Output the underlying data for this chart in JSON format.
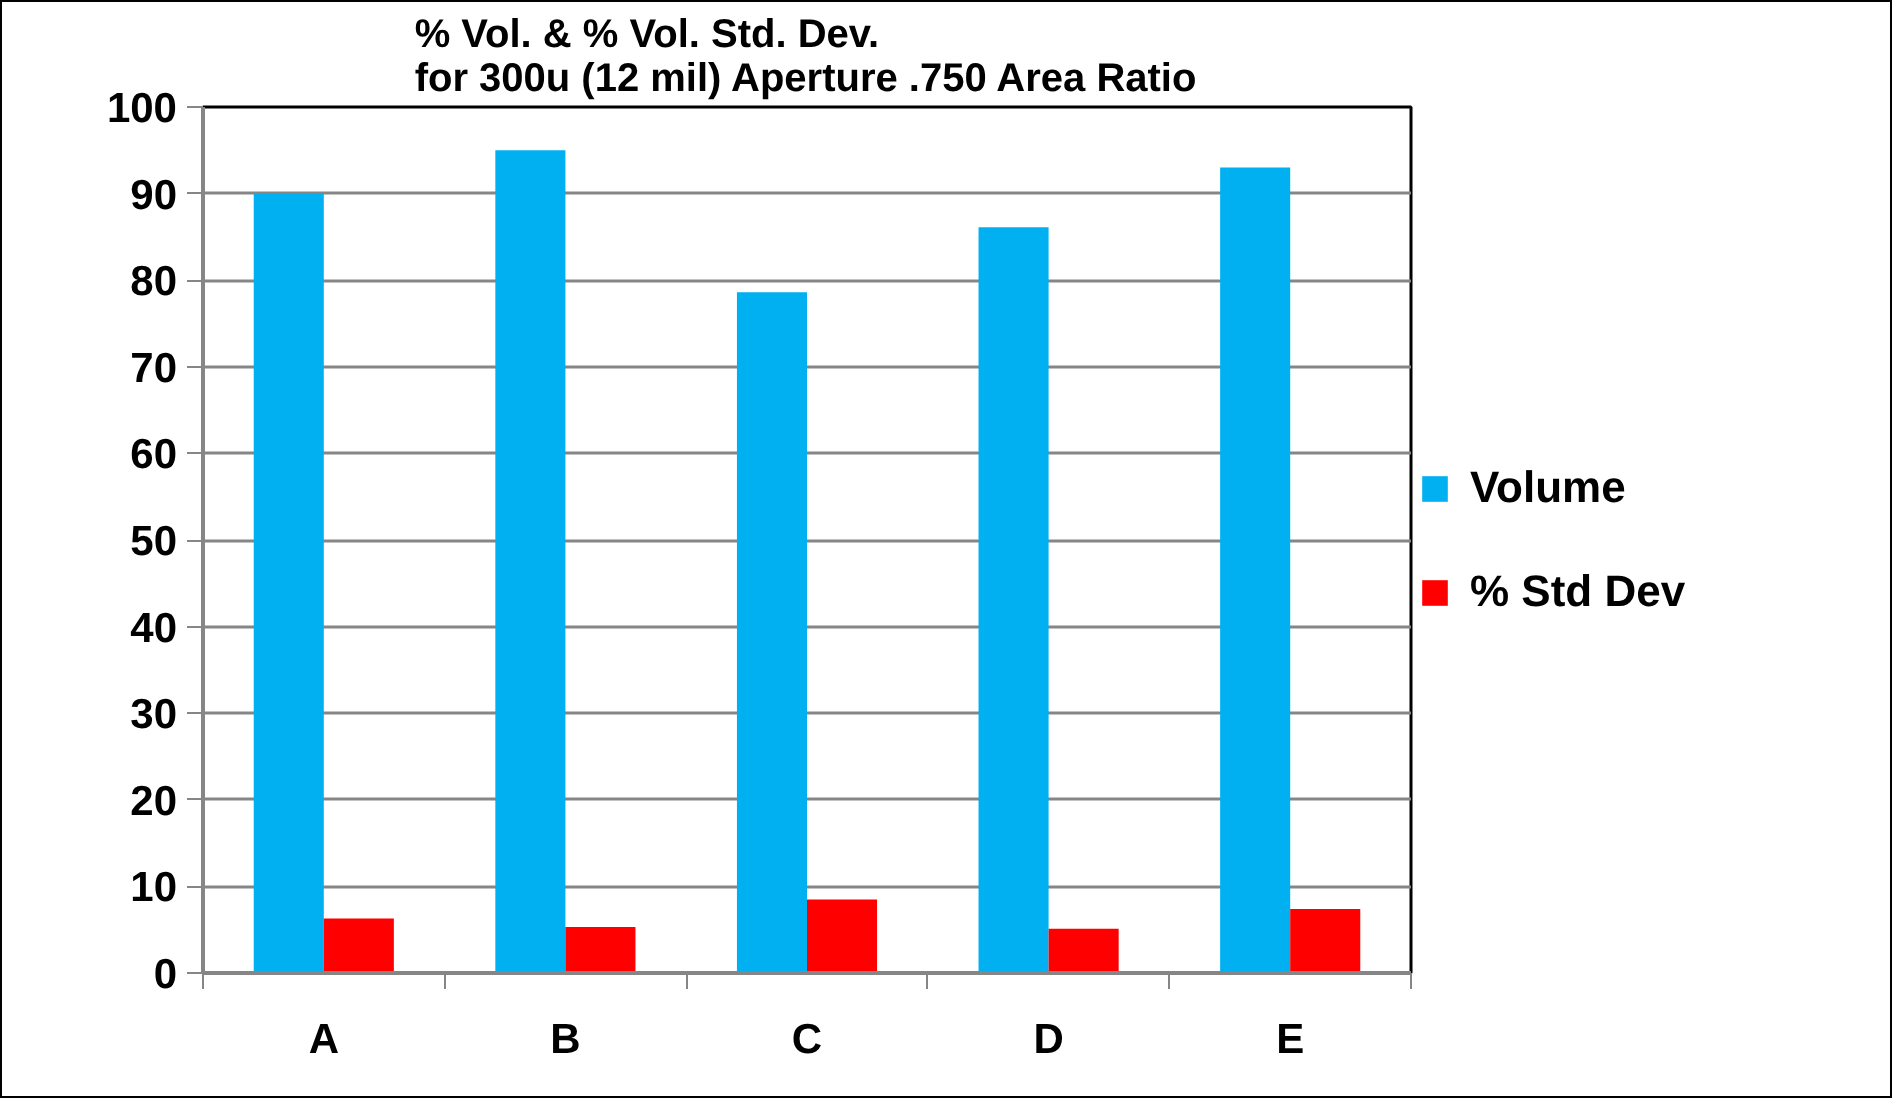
{
  "chart_data": {
    "type": "bar",
    "title": "% Vol. & % Vol. Std. Dev.\nfor 300u (12 mil) Aperture .750 Area Ratio",
    "categories": [
      "A",
      "B",
      "C",
      "D",
      "E"
    ],
    "series": [
      {
        "name": "Volume",
        "color": "#00b0f0",
        "values": [
          90.0,
          95.0,
          78.6,
          86.1,
          93.0
        ]
      },
      {
        "name": "% Std Dev",
        "color": "#ff0000",
        "values": [
          6.3,
          5.3,
          8.5,
          5.1,
          7.4
        ]
      }
    ],
    "ylim": [
      0,
      100
    ],
    "yticks": [
      0,
      10,
      20,
      30,
      40,
      50,
      60,
      70,
      80,
      90,
      100
    ],
    "grid": "y",
    "legend": "right"
  }
}
